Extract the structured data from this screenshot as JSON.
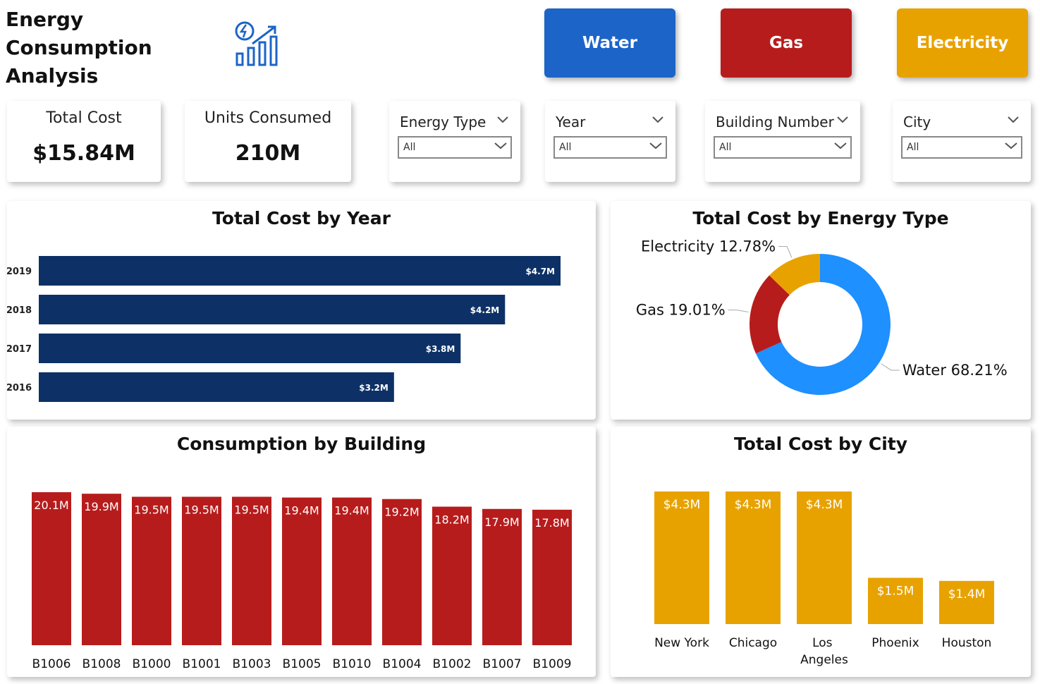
{
  "header": {
    "title": "Energy Consumption Analysis"
  },
  "buttons": [
    "Water",
    "Gas",
    "Electricity"
  ],
  "cards": [
    {
      "label": "Total Cost",
      "value": "$15.84M"
    },
    {
      "label": "Units Consumed",
      "value": "210M"
    }
  ],
  "slicers": [
    {
      "label": "Energy Type",
      "selection": "All"
    },
    {
      "label": "Year",
      "selection": "All"
    },
    {
      "label": "Building Number",
      "selection": "All"
    },
    {
      "label": "City",
      "selection": "All"
    }
  ],
  "chart_data": [
    {
      "type": "bar",
      "orientation": "horizontal",
      "title": "Total Cost by Year",
      "categories": [
        "2019",
        "2018",
        "2017",
        "2016"
      ],
      "values": [
        4.7,
        4.2,
        3.8,
        3.2
      ],
      "value_labels": [
        "$4.7M",
        "$4.2M",
        "$3.8M",
        "$3.2M"
      ],
      "color": "#0d3166"
    },
    {
      "type": "donut",
      "title": "Total Cost by Energy Type",
      "categories": [
        "Water",
        "Gas",
        "Electricity"
      ],
      "values": [
        68.21,
        19.01,
        12.78
      ],
      "value_labels": [
        "68.21%",
        "19.01%",
        "12.78%"
      ],
      "colors": [
        "#1e90ff",
        "#b71c1c",
        "#e8a200"
      ]
    },
    {
      "type": "bar",
      "orientation": "vertical",
      "title": "Consumption by Building",
      "categories": [
        "B1006",
        "B1008",
        "B1000",
        "B1001",
        "B1003",
        "B1005",
        "B1010",
        "B1004",
        "B1002",
        "B1007",
        "B1009"
      ],
      "values": [
        20.1,
        19.9,
        19.5,
        19.5,
        19.5,
        19.4,
        19.4,
        19.2,
        18.2,
        17.9,
        17.8
      ],
      "value_labels": [
        "20.1M",
        "19.9M",
        "19.5M",
        "19.5M",
        "19.5M",
        "19.4M",
        "19.4M",
        "19.2M",
        "18.2M",
        "17.9M",
        "17.8M"
      ],
      "color": "#b71c1c"
    },
    {
      "type": "bar",
      "orientation": "vertical",
      "title": "Total Cost by City",
      "categories": [
        "New York",
        "Chicago",
        "Los Angeles",
        "Phoenix",
        "Houston"
      ],
      "values": [
        4.3,
        4.3,
        4.3,
        1.5,
        1.4
      ],
      "value_labels": [
        "$4.3M",
        "$4.3M",
        "$4.3M",
        "$1.5M",
        "$1.4M"
      ],
      "color": "#e8a200"
    }
  ]
}
